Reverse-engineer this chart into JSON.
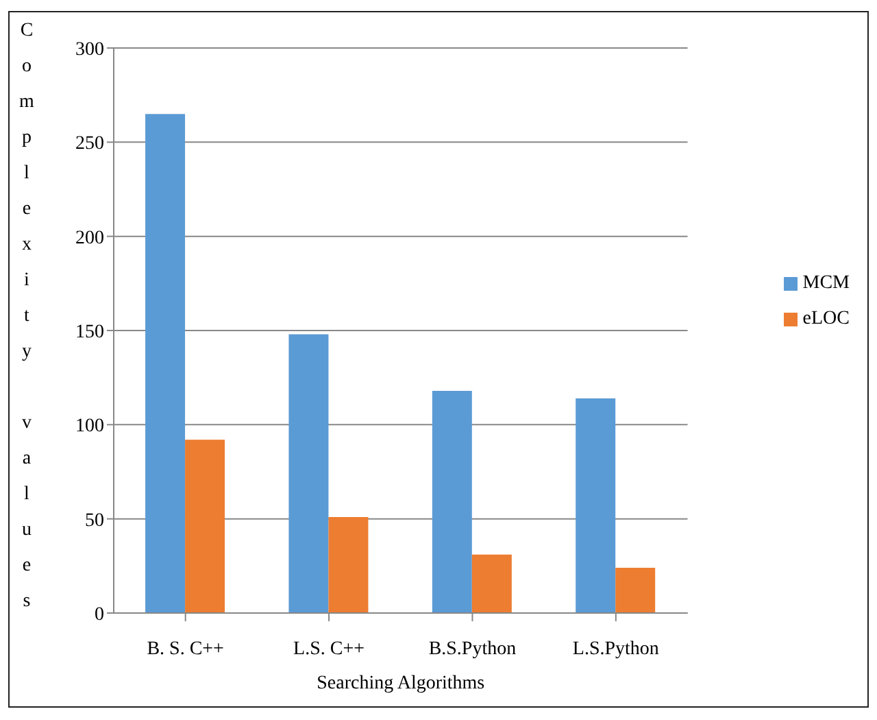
{
  "chart_data": {
    "type": "bar",
    "xlabel": "Searching Algorithms",
    "ylabel": "Complexity values",
    "categories": [
      "B. S. C++",
      "L.S. C++",
      "B.S.Python",
      "L.S.Python"
    ],
    "series": [
      {
        "name": "MCM",
        "color": "#5b9bd5",
        "values": [
          265,
          148,
          118,
          114
        ]
      },
      {
        "name": "eLOC",
        "color": "#ed7d31",
        "values": [
          92,
          51,
          31,
          24
        ]
      }
    ],
    "ylim": [
      0,
      300
    ],
    "yticks": [
      0,
      50,
      100,
      150,
      200,
      250,
      300
    ],
    "grid": "y",
    "legend": "right"
  }
}
